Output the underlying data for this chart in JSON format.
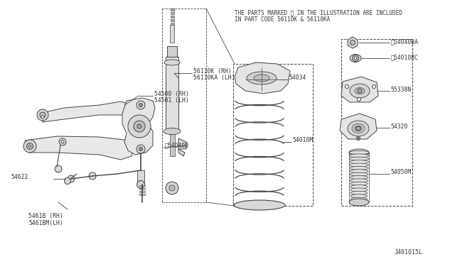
{
  "bg_color": "#ffffff",
  "line_color": "#444444",
  "text_color": "#333333",
  "header_line1": "THE PARTS MARKED ※ IN THE ILLUSTRATION ARE INCLUDED",
  "header_line2": "IN PART CODE 56110K & 56110KA",
  "diagram_id": "J401015L",
  "font_size": 5.8,
  "labels": {
    "56110K_RH": "56110K (RH)",
    "56110KA_LH": "56110KA (LH)",
    "54500_RH": "54500 (RH)",
    "54501_LH": "54501 (LH)",
    "54040B": "※54040B",
    "54622": "54622",
    "54618_RH": "5461B (RH)",
    "54618M_LH": "5461BM(LH)",
    "54034": "54034",
    "54010M": "54010M",
    "54040BA": "※54040BA",
    "54010BC": "※54010BC",
    "55338N": "55338N",
    "54320": "54320",
    "54050M": "54050M"
  }
}
